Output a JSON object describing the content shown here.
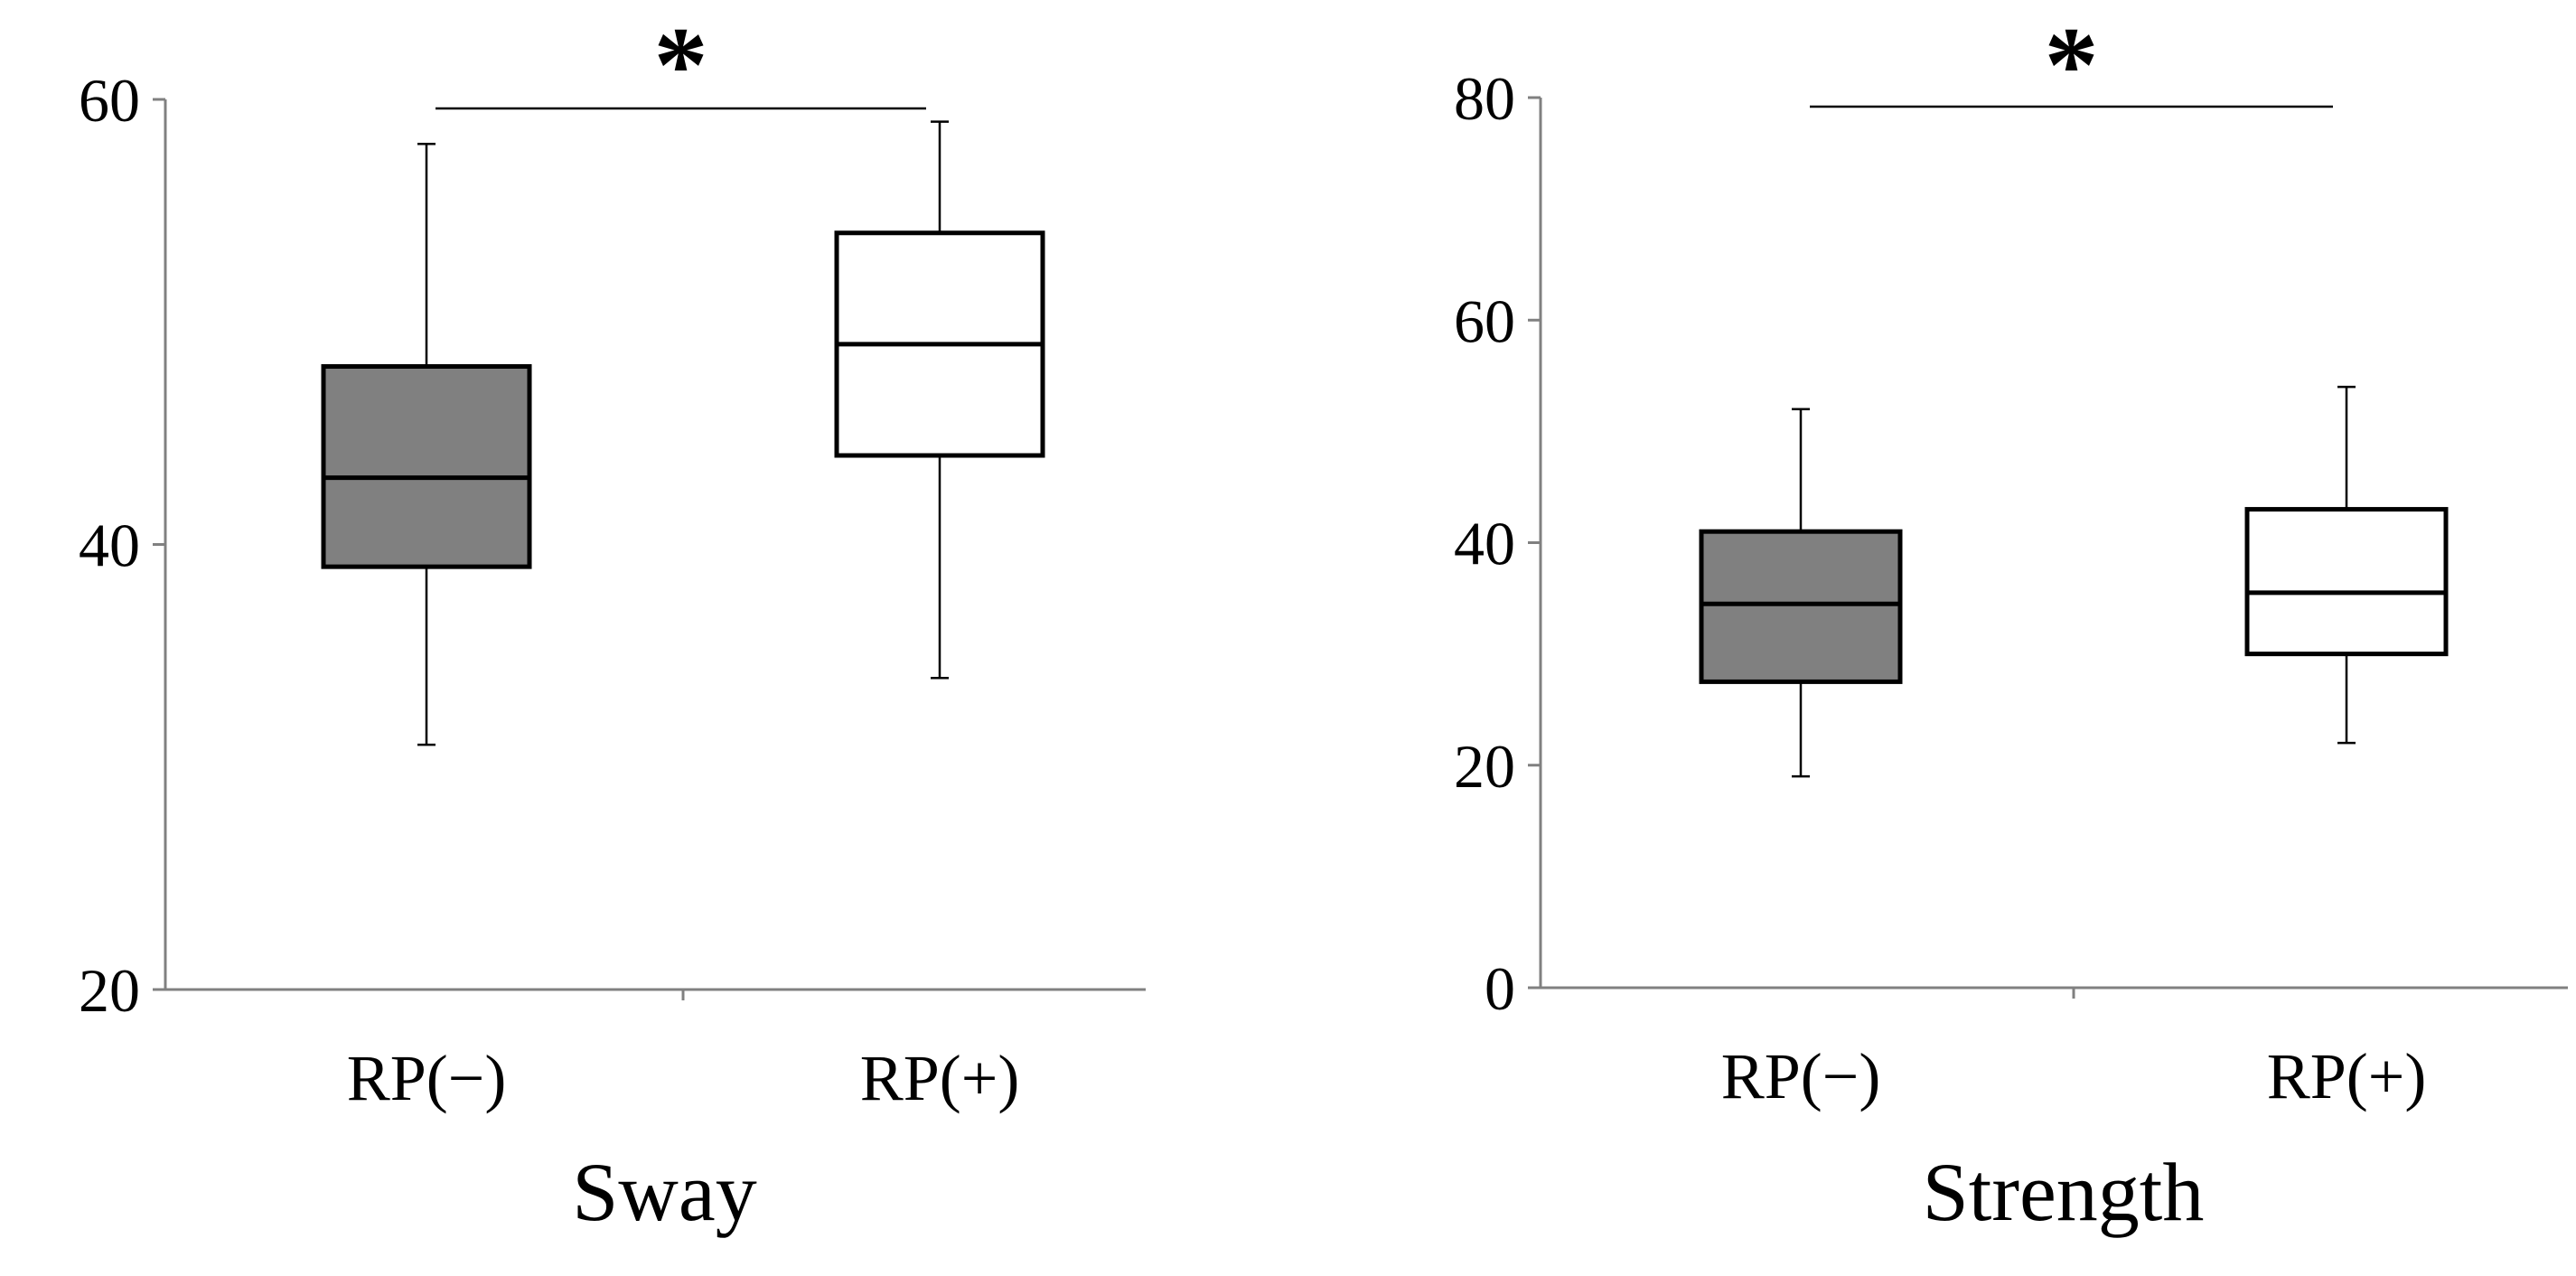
{
  "chart_data": [
    {
      "type": "box",
      "title": "",
      "xlabel": "Sway",
      "ylabel": "",
      "ylim": [
        20,
        60
      ],
      "yticks": [
        20,
        40,
        60
      ],
      "categories": [
        "RP(−)",
        "RP(+)"
      ],
      "boxes": [
        {
          "category": "RP(−)",
          "min": 31,
          "q1": 39,
          "median": 43,
          "q3": 48,
          "max": 58,
          "fill": "#808080"
        },
        {
          "category": "RP(+)",
          "min": 34,
          "q1": 44,
          "median": 49,
          "q3": 54,
          "max": 59,
          "fill": "#ffffff"
        }
      ],
      "significance": {
        "from": "RP(−)",
        "to": "RP(+)",
        "label": "*"
      },
      "grid": false
    },
    {
      "type": "box",
      "title": "",
      "xlabel": "Strength",
      "ylabel": "",
      "ylim": [
        0,
        80
      ],
      "yticks": [
        0,
        20,
        40,
        60,
        80
      ],
      "categories": [
        "RP(−)",
        "RP(+)"
      ],
      "boxes": [
        {
          "category": "RP(−)",
          "min": 19,
          "q1": 27.5,
          "median": 34.5,
          "q3": 41,
          "max": 52,
          "fill": "#808080"
        },
        {
          "category": "RP(+)",
          "min": 22,
          "q1": 30,
          "median": 35.5,
          "q3": 43,
          "max": 54,
          "fill": "#ffffff"
        }
      ],
      "significance": {
        "from": "RP(−)",
        "to": "RP(+)",
        "label": "*"
      },
      "grid": false
    }
  ]
}
